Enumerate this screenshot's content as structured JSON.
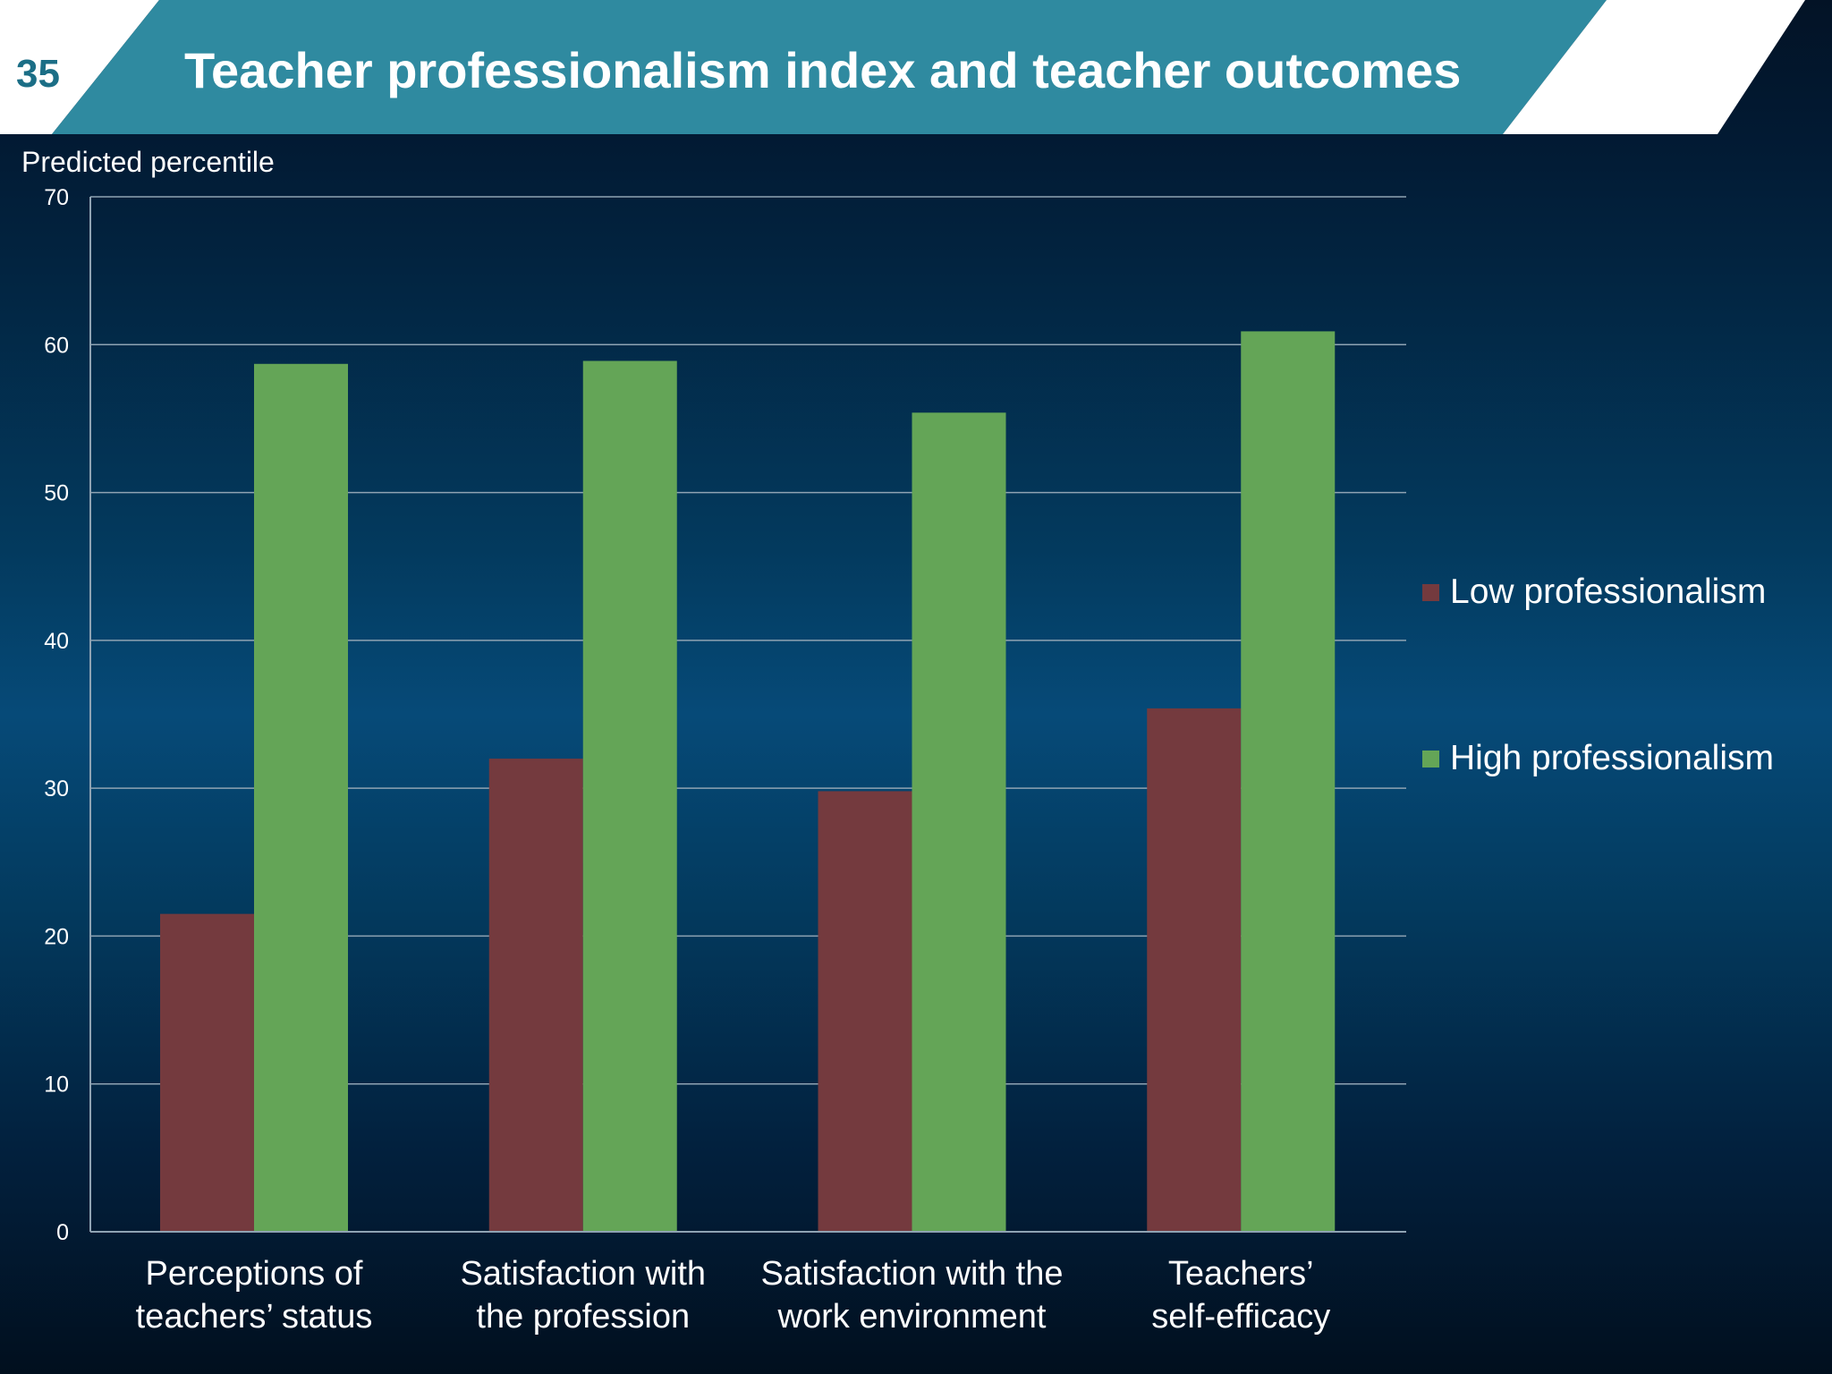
{
  "slide": {
    "number": "35",
    "title": "Teacher professionalism index and teacher outcomes"
  },
  "colors": {
    "header_band": "#2f8aa0",
    "low_professionalism": "#743a3e",
    "high_professionalism": "#64a557",
    "grid": "#8fa3b3",
    "text": "#ffffff"
  },
  "chart_data": {
    "type": "bar",
    "title": "",
    "ylabel": "Predicted percentile",
    "xlabel": "",
    "ylim": [
      0,
      70
    ],
    "yticks": [
      0,
      10,
      20,
      30,
      40,
      50,
      60,
      70
    ],
    "grid": true,
    "legend_position": "right",
    "categories": [
      [
        "Perceptions of",
        "teachers’ status"
      ],
      [
        "Satisfaction with",
        "the profession"
      ],
      [
        "Satisfaction with the",
        "work environment"
      ],
      [
        "Teachers’",
        "self-efficacy"
      ]
    ],
    "series": [
      {
        "name": "Low professionalism",
        "color": "#743a3e",
        "values": [
          21.5,
          32,
          29.8,
          35.4
        ]
      },
      {
        "name": "High professionalism",
        "color": "#64a557",
        "values": [
          58.7,
          58.9,
          55.4,
          60.9
        ]
      }
    ]
  }
}
